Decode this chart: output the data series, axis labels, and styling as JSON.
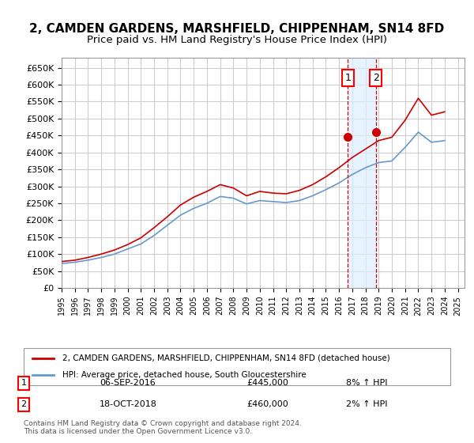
{
  "title": "2, CAMDEN GARDENS, MARSHFIELD, CHIPPENHAM, SN14 8FD",
  "subtitle": "Price paid vs. HM Land Registry's House Price Index (HPI)",
  "title_fontsize": 11,
  "subtitle_fontsize": 9.5,
  "ylabel_ticks": [
    "£0",
    "£50K",
    "£100K",
    "£150K",
    "£200K",
    "£250K",
    "£300K",
    "£350K",
    "£400K",
    "£450K",
    "£500K",
    "£550K",
    "£600K",
    "£650K"
  ],
  "ytick_values": [
    0,
    50000,
    100000,
    150000,
    200000,
    250000,
    300000,
    350000,
    400000,
    450000,
    500000,
    550000,
    600000,
    650000
  ],
  "ylim": [
    0,
    680000
  ],
  "xlim": [
    1995,
    2025.5
  ],
  "xtick_years": [
    1995,
    1996,
    1997,
    1998,
    1999,
    2000,
    2001,
    2002,
    2003,
    2004,
    2005,
    2006,
    2007,
    2008,
    2009,
    2010,
    2011,
    2012,
    2013,
    2014,
    2015,
    2016,
    2017,
    2018,
    2019,
    2020,
    2021,
    2022,
    2023,
    2024,
    2025
  ],
  "hpi_years": [
    1995,
    1996,
    1997,
    1998,
    1999,
    2000,
    2001,
    2002,
    2003,
    2004,
    2005,
    2006,
    2007,
    2008,
    2009,
    2010,
    2011,
    2012,
    2013,
    2014,
    2015,
    2016,
    2017,
    2018,
    2019,
    2020,
    2021,
    2022,
    2023,
    2024
  ],
  "hpi_values": [
    72000,
    76000,
    82000,
    90000,
    100000,
    115000,
    130000,
    155000,
    185000,
    215000,
    235000,
    250000,
    270000,
    265000,
    248000,
    258000,
    255000,
    252000,
    258000,
    272000,
    290000,
    310000,
    335000,
    355000,
    370000,
    375000,
    415000,
    460000,
    430000,
    435000
  ],
  "price_years": [
    1995,
    1996,
    1997,
    1998,
    1999,
    2000,
    2001,
    2002,
    2003,
    2004,
    2005,
    2006,
    2007,
    2008,
    2009,
    2010,
    2011,
    2012,
    2013,
    2014,
    2015,
    2016,
    2017,
    2018,
    2019,
    2020,
    2021,
    2022,
    2023,
    2024
  ],
  "price_values": [
    78000,
    82000,
    90000,
    100000,
    112000,
    128000,
    148000,
    178000,
    210000,
    245000,
    268000,
    285000,
    305000,
    295000,
    272000,
    285000,
    280000,
    278000,
    288000,
    305000,
    328000,
    355000,
    385000,
    410000,
    435000,
    445000,
    495000,
    560000,
    510000,
    520000
  ],
  "transaction1_x": 2016.67,
  "transaction1_y": 445000,
  "transaction1_label": "1",
  "transaction2_x": 2018.79,
  "transaction2_y": 460000,
  "transaction2_label": "2",
  "line_color_price": "#cc0000",
  "line_color_hpi": "#6699cc",
  "grid_color": "#cccccc",
  "bg_color": "#ffffff",
  "shade_color": "#ddeeff",
  "legend_label_price": "2, CAMDEN GARDENS, MARSHFIELD, CHIPPENHAM, SN14 8FD (detached house)",
  "legend_label_hpi": "HPI: Average price, detached house, South Gloucestershire",
  "trans1_date": "06-SEP-2016",
  "trans1_price": "£445,000",
  "trans1_hpi": "8% ↑ HPI",
  "trans2_date": "18-OCT-2018",
  "trans2_price": "£460,000",
  "trans2_hpi": "2% ↑ HPI",
  "footer": "Contains HM Land Registry data © Crown copyright and database right 2024.\nThis data is licensed under the Open Government Licence v3.0."
}
